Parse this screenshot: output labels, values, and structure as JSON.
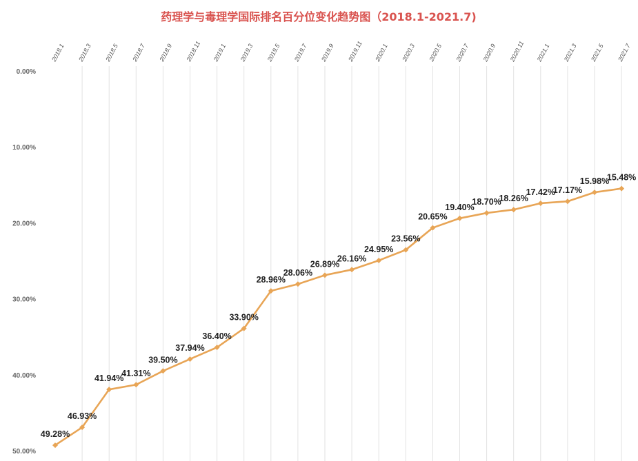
{
  "chart_data": {
    "type": "line",
    "title": "药理学与毒理学国际排名百分位变化趋势图（2018.1-2021.7)",
    "xlabel": "",
    "ylabel": "",
    "categories": [
      "2018.1",
      "2018.3",
      "2018.5",
      "2018.7",
      "2018.9",
      "2018.11",
      "2019.1",
      "2019.3",
      "2019.5",
      "2019.7",
      "2019.9",
      "2019.11",
      "2020.1",
      "2020.3",
      "2020.5",
      "2020.7",
      "2020.9",
      "2020.11",
      "2021.1",
      "2021.3",
      "2021.5",
      "2021.7"
    ],
    "values": [
      49.28,
      46.93,
      41.94,
      41.31,
      39.5,
      37.94,
      36.4,
      33.9,
      28.96,
      28.06,
      26.89,
      26.16,
      24.95,
      23.56,
      20.65,
      19.4,
      18.7,
      18.26,
      17.42,
      17.17,
      15.98,
      15.48
    ],
    "data_labels": [
      "49.28%",
      "46.93%",
      "41.94%",
      "41.31%",
      "39.50%",
      "37.94%",
      "36.40%",
      "33.90%",
      "28.96%",
      "28.06%",
      "26.89%",
      "26.16%",
      "24.95%",
      "23.56%",
      "20.65%",
      "19.40%",
      "18.70%",
      "18.26%",
      "17.42%",
      "17.17%",
      "15.98%",
      "15.48%"
    ],
    "y_axis": {
      "reversed": true,
      "ylim": [
        0,
        50
      ],
      "ticks": [
        0,
        10,
        20,
        30,
        40,
        50
      ],
      "tick_labels": [
        "0.00%",
        "10.00%",
        "20.00%",
        "30.00%",
        "40.00%",
        "50.00%"
      ]
    },
    "x_axis_position": "top",
    "grid": "vertical",
    "legend": "none",
    "colors": {
      "line": "#e8a556",
      "marker": "#e8a556",
      "title": "#d9534f",
      "grid": "#e2e2e2"
    }
  }
}
